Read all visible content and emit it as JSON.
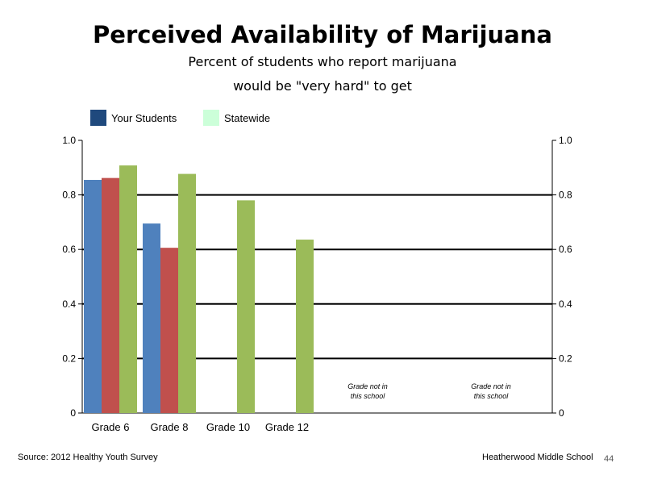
{
  "slide": {
    "source": "Source: 2012 Healthy Youth Survey",
    "school": "Heatherwood Middle  School",
    "page_number": "44"
  },
  "chart_data": {
    "type": "bar",
    "title": "Perceived Availability of Marijuana",
    "subtitle": [
      "Percent of students who report marijuana",
      "would be \"very hard\" to get"
    ],
    "categories": [
      "Grade 6",
      "Grade 8",
      "Grade 10",
      "Grade 12",
      "",
      ""
    ],
    "ylim": [
      0,
      1.0
    ],
    "y_ticks": [
      "0",
      "0.2",
      "0.4",
      "0.6",
      "0.8",
      "1.0"
    ],
    "y_ticks_right": [
      "0",
      "0.2",
      "0.4",
      "0.6",
      "0.8",
      "1.0"
    ],
    "grid": "horizontal",
    "legend": {
      "placement": "top-left",
      "items": [
        {
          "label": "Your Students",
          "color": "#1F497D"
        },
        {
          "label": "Statewide",
          "color": "#CCFFD9"
        }
      ]
    },
    "series": [
      {
        "color": "#4F81BD",
        "values": [
          0.855,
          0.695,
          null,
          null,
          null,
          null
        ]
      },
      {
        "color": "#C0504D",
        "values": [
          0.862,
          0.606,
          null,
          null,
          null,
          null
        ]
      },
      {
        "color": "#9BBB59",
        "values": [
          0.908,
          0.877,
          0.78,
          0.636,
          null,
          null
        ]
      }
    ],
    "annotations": [
      {
        "category_index": 4,
        "lines": [
          "Grade not in",
          "this school"
        ]
      },
      {
        "category_index": 5,
        "lines": [
          "Grade not in",
          "this school"
        ]
      }
    ]
  }
}
